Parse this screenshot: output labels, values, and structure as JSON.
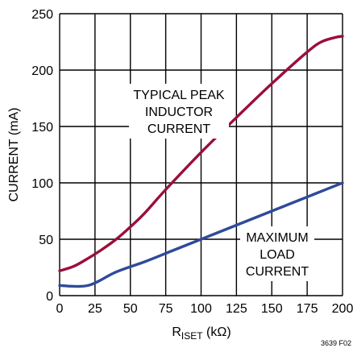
{
  "chart_data": {
    "type": "line",
    "xlabel_main": "R",
    "xlabel_sub": "ISET",
    "xlabel_unit": " (kΩ)",
    "ylabel": "CURRENT (mA)",
    "xlim": [
      0,
      200
    ],
    "ylim": [
      0,
      250
    ],
    "xticks": [
      0,
      25,
      50,
      75,
      100,
      125,
      150,
      175,
      200
    ],
    "yticks": [
      0,
      50,
      100,
      150,
      200,
      250
    ],
    "grid": true,
    "series": [
      {
        "name": "TYPICAL PEAK INDUCTOR CURRENT",
        "color": "#9b0f3a",
        "x": [
          0,
          10,
          20,
          30,
          40,
          50,
          60,
          75,
          100,
          125,
          150,
          175,
          185,
          195,
          200
        ],
        "y": [
          22,
          26,
          33,
          41,
          50,
          61,
          73,
          94,
          127,
          158,
          188,
          216,
          225,
          229,
          230
        ]
      },
      {
        "name": "MAXIMUM LOAD CURRENT",
        "color": "#2f4a9a",
        "x": [
          0,
          20,
          40,
          60,
          80,
          100,
          120,
          140,
          160,
          180,
          200
        ],
        "y": [
          9,
          9,
          21,
          30,
          40,
          50,
          60,
          70,
          80,
          90,
          100
        ]
      }
    ],
    "annotations": {
      "peak": [
        "TYPICAL PEAK",
        "INDUCTOR",
        "CURRENT"
      ],
      "load": [
        "MAXIMUM",
        "LOAD",
        "CURRENT"
      ]
    },
    "figure_id": "3639 F02"
  }
}
